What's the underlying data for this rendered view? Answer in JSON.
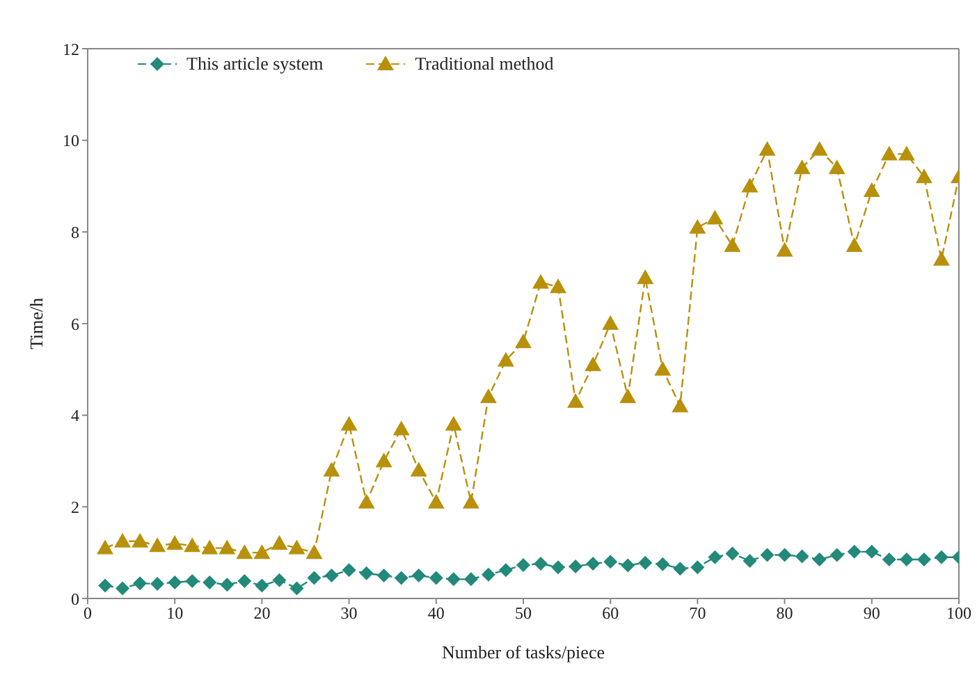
{
  "chart_data": {
    "type": "line",
    "xlabel": "Number of tasks/piece",
    "ylabel": "Time/h",
    "x": [
      2,
      4,
      6,
      8,
      10,
      12,
      14,
      16,
      18,
      20,
      22,
      24,
      26,
      28,
      30,
      32,
      34,
      36,
      38,
      40,
      42,
      44,
      46,
      48,
      50,
      52,
      54,
      56,
      58,
      60,
      62,
      64,
      66,
      68,
      70,
      72,
      74,
      76,
      78,
      80,
      82,
      84,
      86,
      88,
      90,
      92,
      94,
      96,
      98,
      100
    ],
    "series": [
      {
        "name": "This article system",
        "color": "#23897a",
        "marker": "diamond",
        "values": [
          0.28,
          0.22,
          0.33,
          0.32,
          0.35,
          0.38,
          0.35,
          0.3,
          0.38,
          0.28,
          0.4,
          0.22,
          0.45,
          0.5,
          0.62,
          0.55,
          0.5,
          0.45,
          0.5,
          0.45,
          0.42,
          0.42,
          0.52,
          0.62,
          0.73,
          0.76,
          0.68,
          0.7,
          0.76,
          0.8,
          0.72,
          0.78,
          0.75,
          0.65,
          0.68,
          0.9,
          0.98,
          0.82,
          0.95,
          0.95,
          0.92,
          0.85,
          0.95,
          1.02,
          1.02,
          0.85,
          0.85,
          0.85,
          0.9,
          0.9
        ]
      },
      {
        "name": "Traditional method",
        "color": "#b8900a",
        "marker": "triangle",
        "values": [
          1.1,
          1.25,
          1.25,
          1.15,
          1.2,
          1.15,
          1.1,
          1.1,
          1.0,
          1.0,
          1.2,
          1.1,
          1.0,
          2.8,
          3.8,
          2.1,
          3.0,
          3.7,
          2.8,
          2.1,
          3.8,
          2.1,
          4.4,
          5.2,
          5.6,
          6.9,
          6.8,
          4.3,
          5.1,
          6.0,
          4.4,
          7.0,
          5.0,
          4.2,
          8.1,
          8.3,
          7.7,
          9.0,
          9.8,
          7.6,
          9.4,
          9.8,
          9.4,
          7.7,
          8.9,
          9.7,
          9.7,
          9.2,
          7.4,
          9.2
        ]
      }
    ],
    "xlim": [
      0,
      100
    ],
    "xticks": [
      0,
      10,
      20,
      30,
      40,
      50,
      60,
      70,
      80,
      90,
      100
    ],
    "ylim": [
      0,
      12
    ],
    "yticks": [
      0,
      2,
      4,
      6,
      8,
      10,
      12
    ],
    "grid": false,
    "legend": "top left",
    "line_style": "dashed"
  }
}
